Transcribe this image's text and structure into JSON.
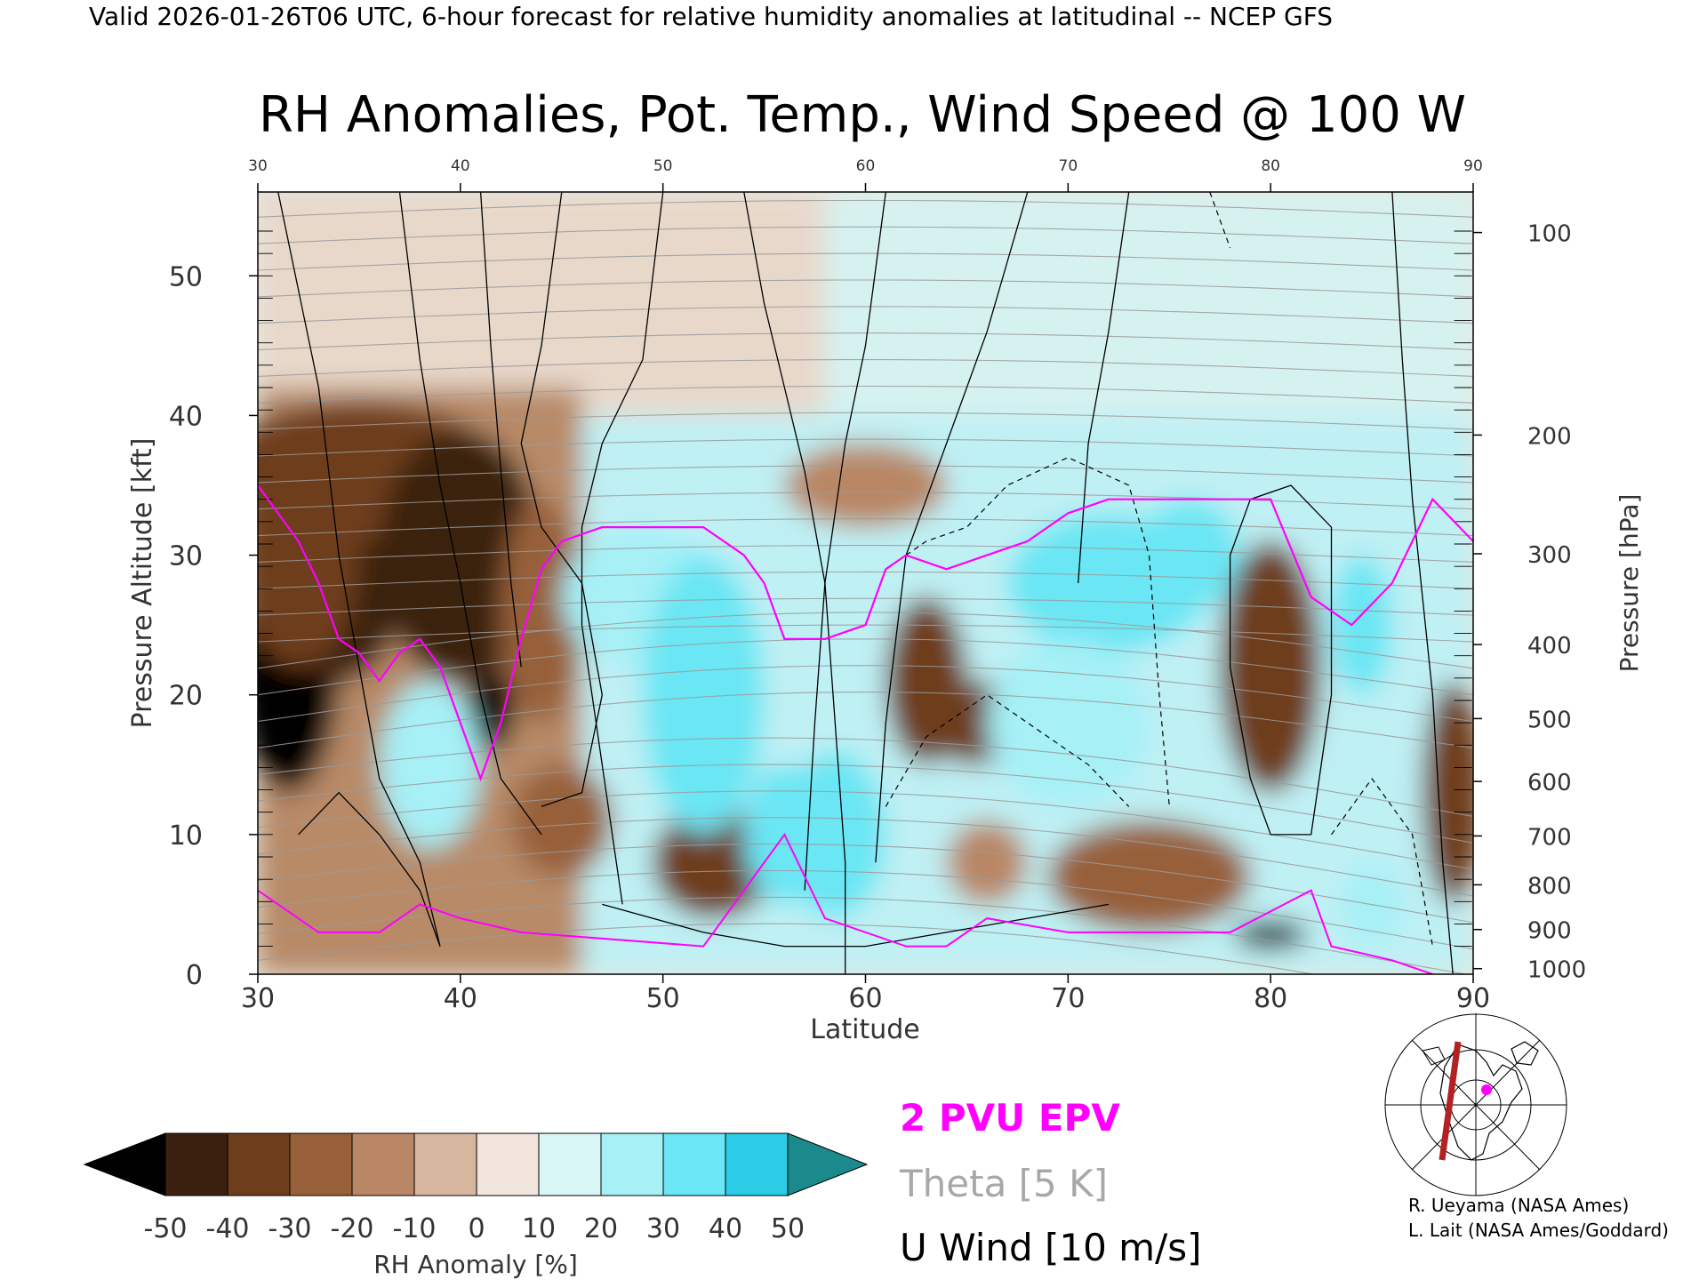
{
  "header": "Valid 2026-01-26T06 UTC, 6-hour forecast for relative humidity anomalies at latitudinal -- NCEP GFS",
  "title": "RH Anomalies, Pot. Temp., Wind Speed @ 100 W",
  "credits": [
    "R. Ueyama (NASA Ames)",
    "L. Lait (NASA Ames/Goddard)"
  ],
  "legend": {
    "epv": "2 PVU EPV",
    "theta": "Theta [5 K]",
    "wind": "U Wind [10 m/s]",
    "epv_color": "#ff00ff",
    "theta_color": "#a0a0a0",
    "wind_color": "#000000"
  },
  "colorbar": {
    "label": "RH Anomaly [%]",
    "ticks": [
      "-50",
      "-40",
      "-30",
      "-20",
      "-10",
      "0",
      "10",
      "20",
      "30",
      "40",
      "50"
    ],
    "colors": [
      "#3b2010",
      "#6e3d1c",
      "#97603a",
      "#b98765",
      "#d7b6a0",
      "#f0e4dc",
      "#d9f6f6",
      "#a6f0f6",
      "#6ae6f4",
      "#2ccbe6",
      "#1596ba"
    ],
    "under_color": "#000000",
    "over_color": "#1a8a8c"
  },
  "chart_data": {
    "type": "heatmap",
    "xlabel": "Latitude",
    "ylabel": "Pressure Altitude [kft]",
    "y2label": "Pressure [hPa]",
    "xlim": [
      30,
      90
    ],
    "ylim": [
      0,
      56
    ],
    "x_ticks": [
      30,
      40,
      50,
      60,
      70,
      80,
      90
    ],
    "y_ticks": [
      0,
      10,
      20,
      30,
      40,
      50
    ],
    "pressure_ticks": [
      {
        "hpa": "100",
        "kft": 53.1
      },
      {
        "hpa": "200",
        "kft": 38.6
      },
      {
        "hpa": "300",
        "kft": 30.1
      },
      {
        "hpa": "400",
        "kft": 23.6
      },
      {
        "hpa": "500",
        "kft": 18.3
      },
      {
        "hpa": "600",
        "kft": 13.8
      },
      {
        "hpa": "700",
        "kft": 9.9
      },
      {
        "hpa": "800",
        "kft": 6.4
      },
      {
        "hpa": "900",
        "kft": 3.2
      },
      {
        "hpa": "1000",
        "kft": 0.4
      }
    ],
    "rh_anomaly_fields": [
      {
        "lat": 31.5,
        "kft": 22,
        "rx": 2.5,
        "ry": 9,
        "value": -55
      },
      {
        "lat": 34,
        "kft": 27,
        "rx": 3,
        "ry": 6,
        "value": -45
      },
      {
        "lat": 35,
        "kft": 36,
        "rx": 7,
        "ry": 5,
        "value": -40
      },
      {
        "lat": 32,
        "kft": 30,
        "rx": 3,
        "ry": 8,
        "value": -40
      },
      {
        "lat": 40,
        "kft": 30,
        "rx": 4,
        "ry": 9,
        "value": -45
      },
      {
        "lat": 41.5,
        "kft": 19,
        "rx": 1.2,
        "ry": 3,
        "value": -55
      },
      {
        "lat": 44,
        "kft": 26,
        "rx": 2,
        "ry": 8,
        "value": -30
      },
      {
        "lat": 45,
        "kft": 11,
        "rx": 2.5,
        "ry": 4,
        "value": -30
      },
      {
        "lat": 52.5,
        "kft": 8,
        "rx": 3,
        "ry": 4,
        "value": -35
      },
      {
        "lat": 60,
        "kft": 35,
        "rx": 4,
        "ry": 3,
        "value": -20
      },
      {
        "lat": 63,
        "kft": 21,
        "rx": 2,
        "ry": 6,
        "value": -35
      },
      {
        "lat": 65.5,
        "kft": 18,
        "rx": 2.5,
        "ry": 3,
        "value": -35
      },
      {
        "lat": 66,
        "kft": 8,
        "rx": 2,
        "ry": 3,
        "value": -20
      },
      {
        "lat": 74,
        "kft": 7,
        "rx": 5,
        "ry": 4,
        "value": -30
      },
      {
        "lat": 80,
        "kft": 22,
        "rx": 2.5,
        "ry": 9,
        "value": -35
      },
      {
        "lat": 80,
        "kft": 2.8,
        "rx": 1.8,
        "ry": 1,
        "value": -55
      },
      {
        "lat": 89,
        "kft": 13,
        "rx": 1.5,
        "ry": 8,
        "value": -35
      },
      {
        "lat": 49,
        "kft": 27,
        "rx": 4,
        "ry": 5,
        "value": 25
      },
      {
        "lat": 52,
        "kft": 20,
        "rx": 3,
        "ry": 10,
        "value": 35
      },
      {
        "lat": 56,
        "kft": 10,
        "rx": 2,
        "ry": 5,
        "value": 30
      },
      {
        "lat": 58.5,
        "kft": 10,
        "rx": 2.5,
        "ry": 6,
        "value": 30
      },
      {
        "lat": 38.5,
        "kft": 15,
        "rx": 2.5,
        "ry": 6,
        "value": 25
      },
      {
        "lat": 72,
        "kft": 28,
        "rx": 5,
        "ry": 5,
        "value": 30
      },
      {
        "lat": 70,
        "kft": 18,
        "rx": 4,
        "ry": 6,
        "value": 25
      },
      {
        "lat": 76,
        "kft": 30,
        "rx": 2.5,
        "ry": 4,
        "value": 30
      },
      {
        "lat": 84.5,
        "kft": 25,
        "rx": 1.5,
        "ry": 5,
        "value": 30
      },
      {
        "lat": 85,
        "kft": 5,
        "rx": 1.5,
        "ry": 3,
        "value": 25
      }
    ],
    "series": [
      {
        "name": "2 PVU EPV",
        "x": [
          30,
          31,
          32,
          33,
          33.5,
          34,
          35,
          36,
          37,
          38,
          39,
          40,
          41,
          42,
          43,
          44,
          45,
          47,
          50,
          52,
          54,
          55,
          56,
          58,
          60,
          61,
          62,
          64,
          66,
          68,
          70,
          72,
          75,
          78,
          80,
          82,
          84,
          86,
          88,
          90
        ],
        "y": [
          35,
          33,
          31,
          28,
          26,
          24,
          23,
          21,
          23,
          24,
          22,
          18,
          14,
          18,
          24,
          29,
          31,
          32,
          32,
          32,
          30,
          28,
          24,
          24,
          25,
          29,
          30,
          29,
          30,
          31,
          33,
          34,
          34,
          34,
          34,
          27,
          25,
          28,
          34,
          31
        ]
      }
    ]
  }
}
